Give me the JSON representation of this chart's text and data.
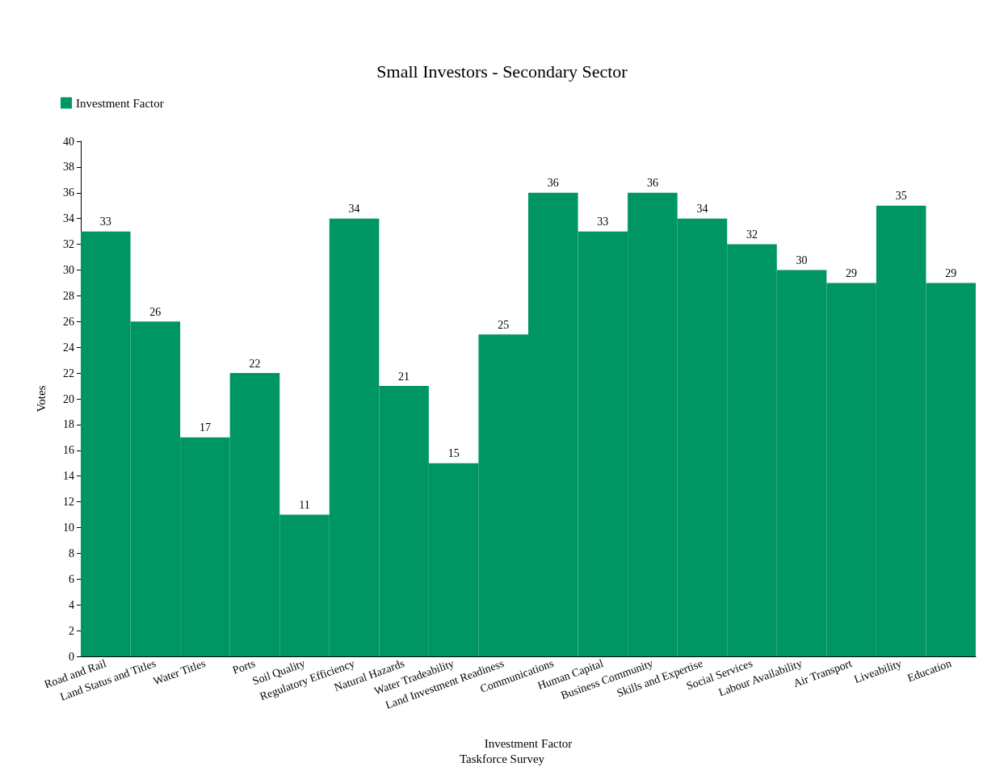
{
  "chart_data": {
    "type": "bar",
    "title": "Small Investors - Secondary Sector",
    "xlabel": "Investment Factor",
    "ylabel": "Votes",
    "annotations": [
      "Taskforce Survey"
    ],
    "categories": [
      "Road and Rail",
      "Land Status and Titles",
      "Water Titles",
      "Ports",
      "Soil Quality",
      "Regulatory Efficiency",
      "Natural Hazards",
      "Water Tradeability",
      "Land Investment Readiness",
      "Communications",
      "Human Capital",
      "Business Community",
      "Skills and Expertise",
      "Social Services",
      "Labour Availability",
      "Air Transport",
      "Liveability",
      "Education"
    ],
    "series": [
      {
        "name": "Investment Factor",
        "color": "#009663",
        "values": [
          33,
          26,
          17,
          22,
          11,
          34,
          21,
          15,
          25,
          36,
          33,
          36,
          34,
          32,
          30,
          29,
          35,
          29
        ]
      }
    ],
    "ylim": [
      0,
      40
    ],
    "yticks": [
      0,
      2,
      4,
      6,
      8,
      10,
      12,
      14,
      16,
      18,
      20,
      22,
      24,
      26,
      28,
      30,
      32,
      34,
      36,
      38,
      40
    ],
    "grid": false,
    "legend": "top left",
    "data_labels": true
  }
}
